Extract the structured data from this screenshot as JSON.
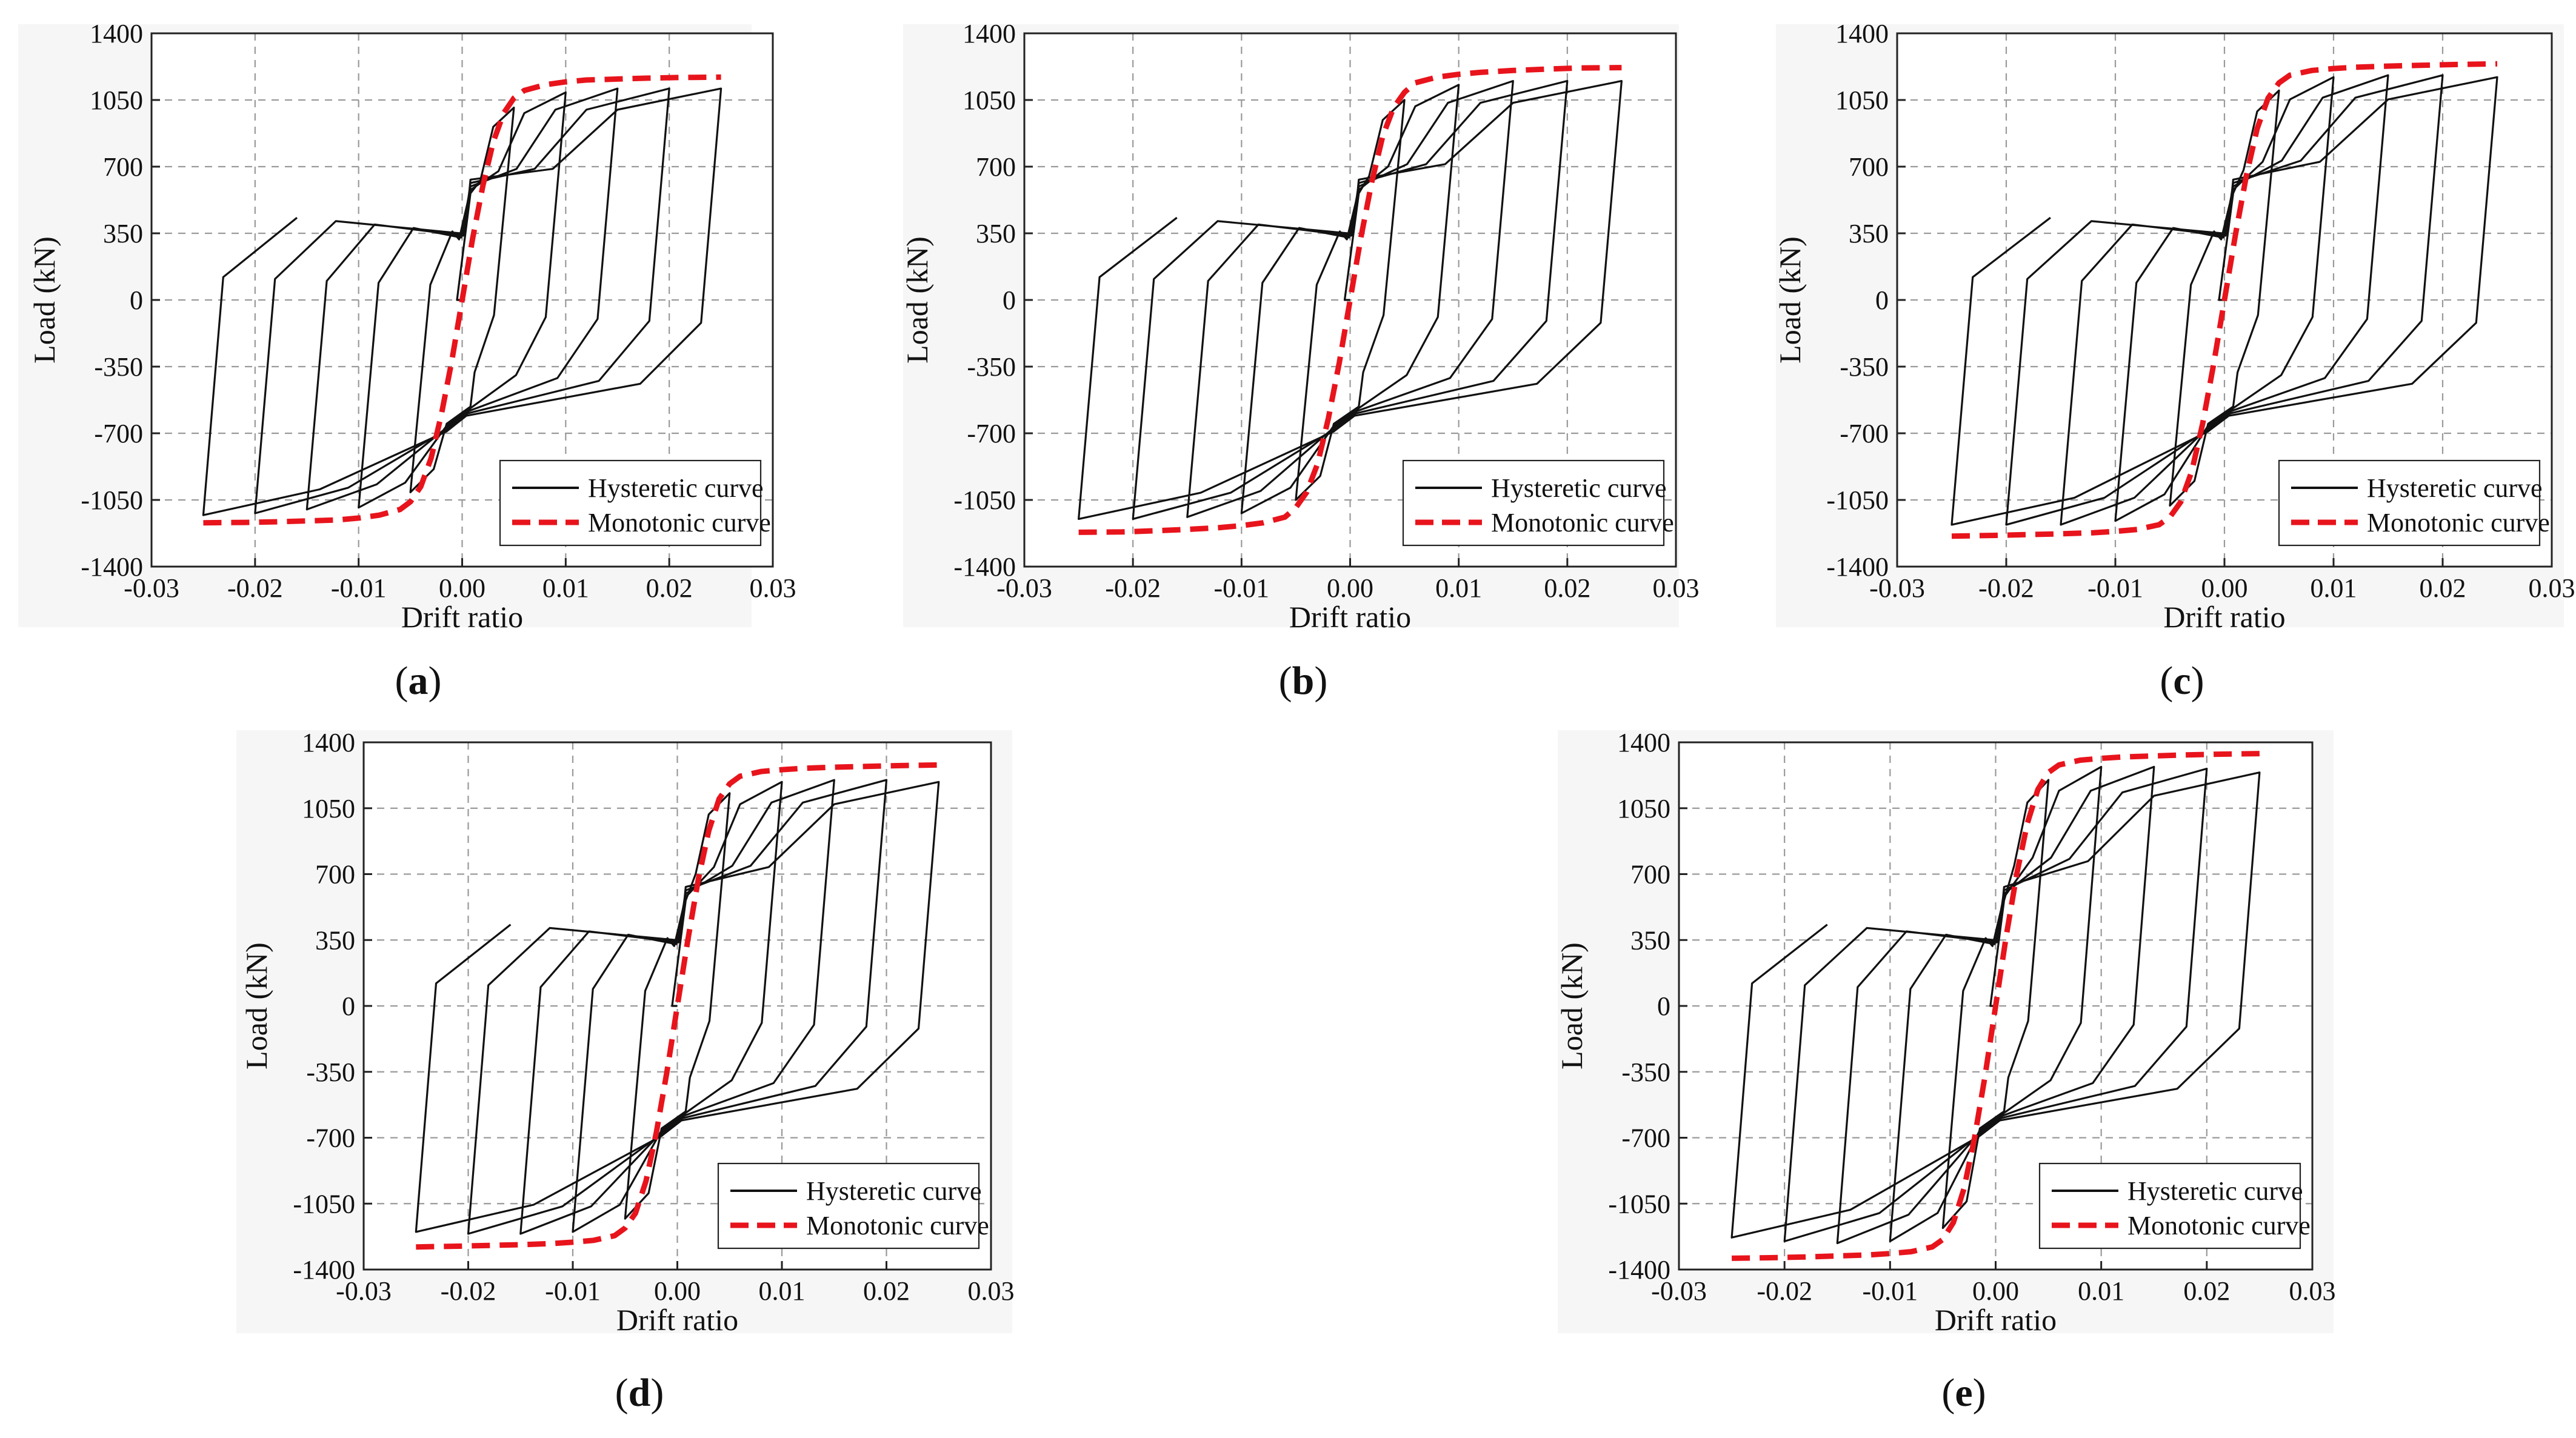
{
  "figure": {
    "colors": {
      "hysteretic": "#111111",
      "monotonic": "#e8141c",
      "grid": "#9a9a9a",
      "background": "#f6f6f6"
    }
  },
  "chart_data": [
    {
      "type": "line",
      "id": "a",
      "label_open": "(",
      "label_letter": "a",
      "label_close": ")",
      "xlabel": "Drift ratio",
      "ylabel": "Load (kN)",
      "xlim": [
        -0.03,
        0.03
      ],
      "ylim": [
        -1400,
        1400
      ],
      "xticks": [
        "-0.03",
        "-0.02",
        "-0.01",
        "0.00",
        "0.01",
        "0.02",
        "0.03"
      ],
      "yticks": [
        "1400",
        "1050",
        "700",
        "350",
        "0",
        "-350",
        "-700",
        "-1050",
        "-1400"
      ],
      "legend_position": "bottom-right",
      "series": [
        {
          "name": "Hysteretic curve",
          "style": "solid black",
          "cycles": [
            {
              "drift": 0.005,
              "peak": 1010,
              "neg_peak": -1010
            },
            {
              "drift": 0.01,
              "peak": 1090,
              "neg_peak": -1090
            },
            {
              "drift": 0.015,
              "peak": 1110,
              "neg_peak": -1100
            },
            {
              "drift": 0.02,
              "peak": 1110,
              "neg_peak": -1120
            },
            {
              "drift": 0.025,
              "peak": 1110,
              "neg_peak": -1130
            }
          ]
        },
        {
          "name": "Monotonic curve",
          "style": "dashed red",
          "x": [
            0,
            0.001,
            0.002,
            0.003,
            0.004,
            0.005,
            0.006,
            0.008,
            0.01,
            0.012,
            0.015,
            0.018,
            0.021,
            0.025
          ],
          "y": [
            0,
            320,
            600,
            830,
            980,
            1060,
            1100,
            1130,
            1145,
            1155,
            1160,
            1165,
            1168,
            1170
          ]
        }
      ]
    },
    {
      "type": "line",
      "id": "b",
      "label_open": "(",
      "label_letter": "b",
      "label_close": ")",
      "xlabel": "Drift ratio",
      "ylabel": "Load (kN)",
      "xlim": [
        -0.03,
        0.03
      ],
      "ylim": [
        -1400,
        1400
      ],
      "xticks": [
        "-0.03",
        "-0.02",
        "-0.01",
        "0.00",
        "0.01",
        "0.02",
        "0.03"
      ],
      "yticks": [
        "1400",
        "1050",
        "700",
        "350",
        "0",
        "-350",
        "-700",
        "-1050",
        "-1400"
      ],
      "legend_position": "bottom-right",
      "series": [
        {
          "name": "Hysteretic curve",
          "style": "solid black",
          "cycles": [
            {
              "drift": 0.005,
              "peak": 1050,
              "neg_peak": -1050
            },
            {
              "drift": 0.01,
              "peak": 1130,
              "neg_peak": -1120
            },
            {
              "drift": 0.015,
              "peak": 1150,
              "neg_peak": -1140
            },
            {
              "drift": 0.02,
              "peak": 1150,
              "neg_peak": -1150
            },
            {
              "drift": 0.025,
              "peak": 1150,
              "neg_peak": -1150
            }
          ]
        },
        {
          "name": "Monotonic curve",
          "style": "dashed red",
          "x": [
            0,
            0.001,
            0.002,
            0.003,
            0.004,
            0.005,
            0.006,
            0.008,
            0.01,
            0.012,
            0.015,
            0.018,
            0.021,
            0.025
          ],
          "y": [
            0,
            330,
            620,
            860,
            1010,
            1090,
            1140,
            1170,
            1185,
            1195,
            1205,
            1212,
            1218,
            1220
          ]
        }
      ]
    },
    {
      "type": "line",
      "id": "c",
      "label_open": "(",
      "label_letter": "c",
      "label_close": ")",
      "xlabel": "Drift ratio",
      "ylabel": "Load (kN)",
      "xlim": [
        -0.03,
        0.03
      ],
      "ylim": [
        -1400,
        1400
      ],
      "xticks": [
        "-0.03",
        "-0.02",
        "-0.01",
        "0.00",
        "0.01",
        "0.02",
        "0.03"
      ],
      "yticks": [
        "1400",
        "1050",
        "700",
        "350",
        "0",
        "-350",
        "-700",
        "-1050",
        "-1400"
      ],
      "legend_position": "bottom-right",
      "series": [
        {
          "name": "Hysteretic curve",
          "style": "solid black",
          "cycles": [
            {
              "drift": 0.005,
              "peak": 1100,
              "neg_peak": -1080
            },
            {
              "drift": 0.01,
              "peak": 1170,
              "neg_peak": -1160
            },
            {
              "drift": 0.015,
              "peak": 1180,
              "neg_peak": -1180
            },
            {
              "drift": 0.02,
              "peak": 1180,
              "neg_peak": -1180
            },
            {
              "drift": 0.025,
              "peak": 1170,
              "neg_peak": -1180
            }
          ]
        },
        {
          "name": "Monotonic curve",
          "style": "dashed red",
          "x": [
            0,
            0.001,
            0.002,
            0.003,
            0.004,
            0.005,
            0.006,
            0.008,
            0.01,
            0.012,
            0.015,
            0.018,
            0.021,
            0.025
          ],
          "y": [
            0,
            340,
            650,
            900,
            1060,
            1140,
            1180,
            1205,
            1215,
            1222,
            1228,
            1232,
            1236,
            1240
          ]
        }
      ]
    },
    {
      "type": "line",
      "id": "d",
      "label_open": "(",
      "label_letter": "d",
      "label_close": ")",
      "xlabel": "Drift ratio",
      "ylabel": "Load (kN)",
      "xlim": [
        -0.03,
        0.03
      ],
      "ylim": [
        -1400,
        1400
      ],
      "xticks": [
        "-0.03",
        "-0.02",
        "-0.01",
        "0.00",
        "0.01",
        "0.02",
        "0.03"
      ],
      "yticks": [
        "1400",
        "1050",
        "700",
        "350",
        "0",
        "-350",
        "-700",
        "-1050",
        "-1400"
      ],
      "legend_position": "bottom-right",
      "series": [
        {
          "name": "Hysteretic curve",
          "style": "solid black",
          "cycles": [
            {
              "drift": 0.005,
              "peak": 1130,
              "neg_peak": -1130
            },
            {
              "drift": 0.01,
              "peak": 1190,
              "neg_peak": -1200
            },
            {
              "drift": 0.015,
              "peak": 1200,
              "neg_peak": -1210
            },
            {
              "drift": 0.02,
              "peak": 1200,
              "neg_peak": -1210
            },
            {
              "drift": 0.025,
              "peak": 1190,
              "neg_peak": -1200
            }
          ]
        },
        {
          "name": "Monotonic curve",
          "style": "dashed red",
          "x": [
            0,
            0.001,
            0.002,
            0.003,
            0.004,
            0.005,
            0.006,
            0.008,
            0.01,
            0.012,
            0.015,
            0.018,
            0.021,
            0.025
          ],
          "y": [
            0,
            350,
            670,
            930,
            1100,
            1180,
            1220,
            1245,
            1255,
            1262,
            1268,
            1272,
            1276,
            1280
          ]
        }
      ]
    },
    {
      "type": "line",
      "id": "e",
      "label_open": "(",
      "label_letter": "e",
      "label_close": ")",
      "xlabel": "Drift ratio",
      "ylabel": "Load (kN)",
      "xlim": [
        -0.03,
        0.03
      ],
      "ylim": [
        -1400,
        1400
      ],
      "xticks": [
        "-0.03",
        "-0.02",
        "-0.01",
        "0.00",
        "0.01",
        "0.02",
        "0.03"
      ],
      "yticks": [
        "1400",
        "1050",
        "700",
        "350",
        "0",
        "-350",
        "-700",
        "-1050",
        "-1400"
      ],
      "legend_position": "bottom-right",
      "series": [
        {
          "name": "Hysteretic curve",
          "style": "solid black",
          "cycles": [
            {
              "drift": 0.005,
              "peak": 1200,
              "neg_peak": -1180
            },
            {
              "drift": 0.01,
              "peak": 1270,
              "neg_peak": -1250
            },
            {
              "drift": 0.015,
              "peak": 1270,
              "neg_peak": -1260
            },
            {
              "drift": 0.02,
              "peak": 1260,
              "neg_peak": -1250
            },
            {
              "drift": 0.025,
              "peak": 1240,
              "neg_peak": -1230
            }
          ]
        },
        {
          "name": "Monotonic curve",
          "style": "dashed red",
          "x": [
            0,
            0.001,
            0.002,
            0.003,
            0.004,
            0.005,
            0.006,
            0.008,
            0.01,
            0.012,
            0.015,
            0.018,
            0.021,
            0.025
          ],
          "y": [
            0,
            370,
            700,
            970,
            1150,
            1240,
            1280,
            1305,
            1315,
            1322,
            1328,
            1333,
            1337,
            1340
          ]
        }
      ]
    }
  ]
}
